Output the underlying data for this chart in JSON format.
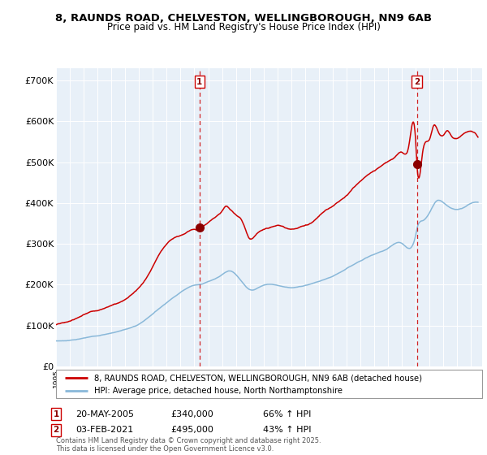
{
  "title_line1": "8, RAUNDS ROAD, CHELVESTON, WELLINGBOROUGH, NN9 6AB",
  "title_line2": "Price paid vs. HM Land Registry's House Price Index (HPI)",
  "legend_line1": "8, RAUNDS ROAD, CHELVESTON, WELLINGBOROUGH, NN9 6AB (detached house)",
  "legend_line2": "HPI: Average price, detached house, North Northamptonshire",
  "annotation1_date": "20-MAY-2005",
  "annotation1_price": "£340,000",
  "annotation1_hpi": "66% ↑ HPI",
  "annotation2_date": "03-FEB-2021",
  "annotation2_price": "£495,000",
  "annotation2_hpi": "43% ↑ HPI",
  "vline1_x": 2005.38,
  "vline2_x": 2021.09,
  "dot1_x": 2005.38,
  "dot1_y": 340000,
  "dot2_x": 2021.09,
  "dot2_y": 495000,
  "y_ticks": [
    0,
    100000,
    200000,
    300000,
    400000,
    500000,
    600000,
    700000
  ],
  "y_tick_labels": [
    "£0",
    "£100K",
    "£200K",
    "£300K",
    "£400K",
    "£500K",
    "£600K",
    "£700K"
  ],
  "ylim": [
    0,
    730000
  ],
  "xlim_start": 1995.0,
  "xlim_end": 2025.8,
  "background_color": "#e8f0f8",
  "plot_bg_color": "#e8f0f8",
  "red_line_color": "#cc0000",
  "blue_line_color": "#89b8d9",
  "vline_color": "#cc0000",
  "footer_text": "Contains HM Land Registry data © Crown copyright and database right 2025.\nThis data is licensed under the Open Government Licence v3.0.",
  "hpi_controls": [
    [
      1995.0,
      62000
    ],
    [
      1996.0,
      64000
    ],
    [
      1997.0,
      69000
    ],
    [
      1998.0,
      75000
    ],
    [
      1999.0,
      82000
    ],
    [
      2000.0,
      91000
    ],
    [
      2001.0,
      104000
    ],
    [
      2002.0,
      130000
    ],
    [
      2003.0,
      158000
    ],
    [
      2004.0,
      184000
    ],
    [
      2005.0,
      202000
    ],
    [
      2005.38,
      204000
    ],
    [
      2006.0,
      212000
    ],
    [
      2007.0,
      228000
    ],
    [
      2007.5,
      237000
    ],
    [
      2008.0,
      228000
    ],
    [
      2009.0,
      192000
    ],
    [
      2010.0,
      203000
    ],
    [
      2011.0,
      203000
    ],
    [
      2012.0,
      198000
    ],
    [
      2013.0,
      203000
    ],
    [
      2014.0,
      213000
    ],
    [
      2015.0,
      224000
    ],
    [
      2016.0,
      242000
    ],
    [
      2017.0,
      262000
    ],
    [
      2018.0,
      278000
    ],
    [
      2019.0,
      293000
    ],
    [
      2020.0,
      305000
    ],
    [
      2021.0,
      325000
    ],
    [
      2021.09,
      340000
    ],
    [
      2021.5,
      360000
    ],
    [
      2022.0,
      380000
    ],
    [
      2022.5,
      408000
    ],
    [
      2023.0,
      405000
    ],
    [
      2023.5,
      393000
    ],
    [
      2024.0,
      388000
    ],
    [
      2024.5,
      393000
    ],
    [
      2025.0,
      402000
    ],
    [
      2025.4,
      405000
    ]
  ],
  "red_controls": [
    [
      1995.0,
      102000
    ],
    [
      1995.5,
      105000
    ],
    [
      1996.0,
      109000
    ],
    [
      1996.5,
      116000
    ],
    [
      1997.0,
      125000
    ],
    [
      1997.5,
      134000
    ],
    [
      1998.0,
      138000
    ],
    [
      1998.5,
      144000
    ],
    [
      1999.0,
      151000
    ],
    [
      1999.5,
      158000
    ],
    [
      2000.0,
      168000
    ],
    [
      2000.5,
      181000
    ],
    [
      2001.0,
      196000
    ],
    [
      2001.5,
      216000
    ],
    [
      2002.0,
      246000
    ],
    [
      2002.5,
      278000
    ],
    [
      2003.0,
      302000
    ],
    [
      2003.5,
      315000
    ],
    [
      2004.0,
      322000
    ],
    [
      2004.5,
      332000
    ],
    [
      2005.0,
      338000
    ],
    [
      2005.38,
      340000
    ],
    [
      2005.5,
      344000
    ],
    [
      2006.0,
      358000
    ],
    [
      2006.5,
      372000
    ],
    [
      2007.0,
      386000
    ],
    [
      2007.3,
      398000
    ],
    [
      2007.5,
      393000
    ],
    [
      2008.0,
      376000
    ],
    [
      2008.5,
      356000
    ],
    [
      2009.0,
      316000
    ],
    [
      2009.5,
      328000
    ],
    [
      2010.0,
      338000
    ],
    [
      2010.5,
      342000
    ],
    [
      2011.0,
      345000
    ],
    [
      2011.5,
      342000
    ],
    [
      2012.0,
      337000
    ],
    [
      2012.5,
      342000
    ],
    [
      2013.0,
      349000
    ],
    [
      2013.5,
      357000
    ],
    [
      2014.0,
      372000
    ],
    [
      2014.5,
      386000
    ],
    [
      2015.0,
      396000
    ],
    [
      2015.5,
      411000
    ],
    [
      2016.0,
      425000
    ],
    [
      2016.5,
      445000
    ],
    [
      2017.0,
      460000
    ],
    [
      2017.5,
      475000
    ],
    [
      2018.0,
      486000
    ],
    [
      2018.5,
      496000
    ],
    [
      2019.0,
      506000
    ],
    [
      2019.5,
      516000
    ],
    [
      2020.0,
      526000
    ],
    [
      2020.5,
      541000
    ],
    [
      2021.0,
      552000
    ],
    [
      2021.09,
      495000
    ],
    [
      2021.5,
      528000
    ],
    [
      2022.0,
      558000
    ],
    [
      2022.3,
      592000
    ],
    [
      2022.5,
      587000
    ],
    [
      2022.7,
      572000
    ],
    [
      2023.0,
      568000
    ],
    [
      2023.3,
      578000
    ],
    [
      2023.5,
      568000
    ],
    [
      2024.0,
      558000
    ],
    [
      2024.5,
      572000
    ],
    [
      2025.0,
      578000
    ],
    [
      2025.4,
      568000
    ]
  ]
}
